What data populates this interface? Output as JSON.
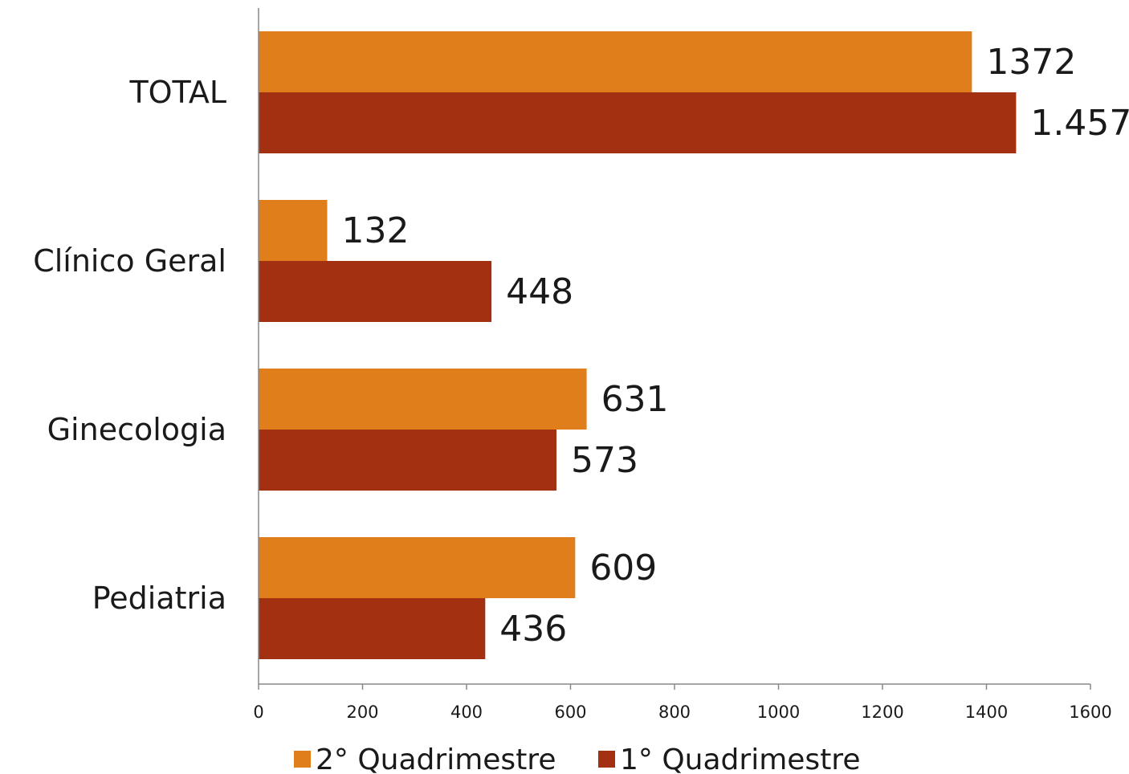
{
  "chart_data": {
    "type": "bar",
    "orientation": "horizontal",
    "categories": [
      "TOTAL",
      "Clínico Geral",
      "Ginecologia",
      "Pediatria"
    ],
    "series": [
      {
        "name": "2° Quadrimestre",
        "color": "#DF7E1A",
        "values": [
          1372,
          132,
          631,
          609
        ],
        "value_labels": [
          "1372",
          "132",
          "631",
          "609"
        ]
      },
      {
        "name": "1° Quadrimestre",
        "color": "#A33011",
        "values": [
          1457,
          448,
          573,
          436
        ],
        "value_labels": [
          "1.457",
          "448",
          "573",
          "436"
        ]
      }
    ],
    "xlim": [
      0,
      1600
    ],
    "x_ticks": [
      "0",
      "200",
      "400",
      "600",
      "800",
      "1000",
      "1200",
      "1400",
      "1600"
    ],
    "grid": false,
    "legend_position": "bottom"
  }
}
